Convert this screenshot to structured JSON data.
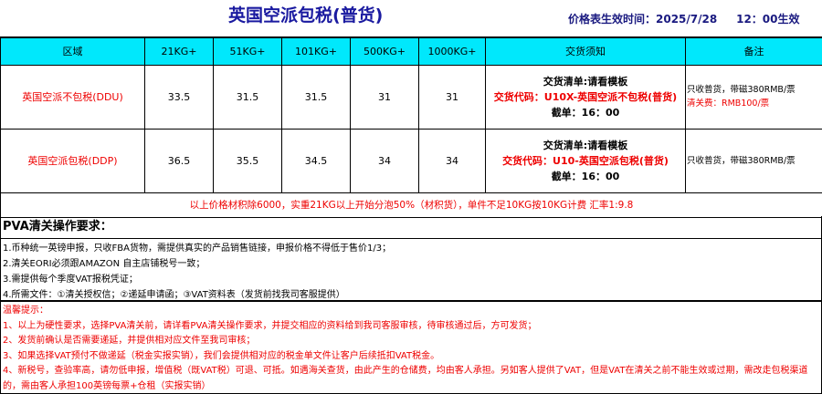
{
  "title": "英国空派包税(普货)",
  "effective": "价格表生效时间：2025/7/28     12：00生效",
  "headers": [
    "区域",
    "21KG+",
    "51KG+",
    "101KG+",
    "500KG+",
    "1000KG+",
    "交货须知",
    "备注"
  ],
  "rows": [
    {
      "region": "英国空派不包税(DDU)",
      "prices": [
        "33.5",
        "31.5",
        "31.5",
        "31",
        "31"
      ],
      "notice_list": "交货清单:请看模板",
      "notice_code": "交货代码：U10X-英国空派不包税(普货)",
      "cutoff": "截单：16：00",
      "remark": "只收普货，带磁380RMB/票",
      "remark_red": "清关费：RMB100/票"
    },
    {
      "region": "英国空派包税(DDP)",
      "prices": [
        "36.5",
        "35.5",
        "34.5",
        "34",
        "34"
      ],
      "notice_list": "交货清单:请看模板",
      "notice_code": "交货代码：U10-英国空派包税(普货)",
      "cutoff": "截单：16：00",
      "remark": "只收普货，带磁380RMB/票",
      "remark_red": ""
    }
  ],
  "price_note": "以上价格材积除6000，实重21KG以上开始分泡50%（材积货），单件不足10KG按10KG计费  汇率1:9.8",
  "pva": {
    "title": "PVA清关操作要求：",
    "items": [
      "1.币种统一英镑申报，只收FBA货物，需提供真实的产品销售链接，申报价格不得低于售价1/3；",
      "2.清关EORI必须跟AMAZON 自主店铺税号一致；",
      "3.需提供每个季度VAT报税凭证；",
      "4.所需文件：①清关授权信；②递延申请函；③VAT资料表（发货前找我司客服提供）"
    ]
  },
  "tips": {
    "title": "温馨提示：",
    "items": [
      "1、以上为硬性要求，选择PVA清关前，请详看PVA清关操作要求，并提交相应的资料给到我司客服审核，待审核通过后，方可发货；",
      "2、发货前确认是否需要递延，并提供相对应文件至我司审核；",
      "3、如果选择VAT预付不做递延（税金实报实销），我们会提供相对应的税金单文件让客户后续抵扣VAT税金。",
      "4、新税号，查验率高，请勿低申报，增值税（既VAT税）可退、可抵。如遇海关查货，由此产生的仓储费，均由客人承担。另如客人提供了VAT，但是VAT在清关之前不能生效或过期，需改走包税渠道的，需由客人承担100英镑每票+仓租（实报实销）"
    ]
  }
}
